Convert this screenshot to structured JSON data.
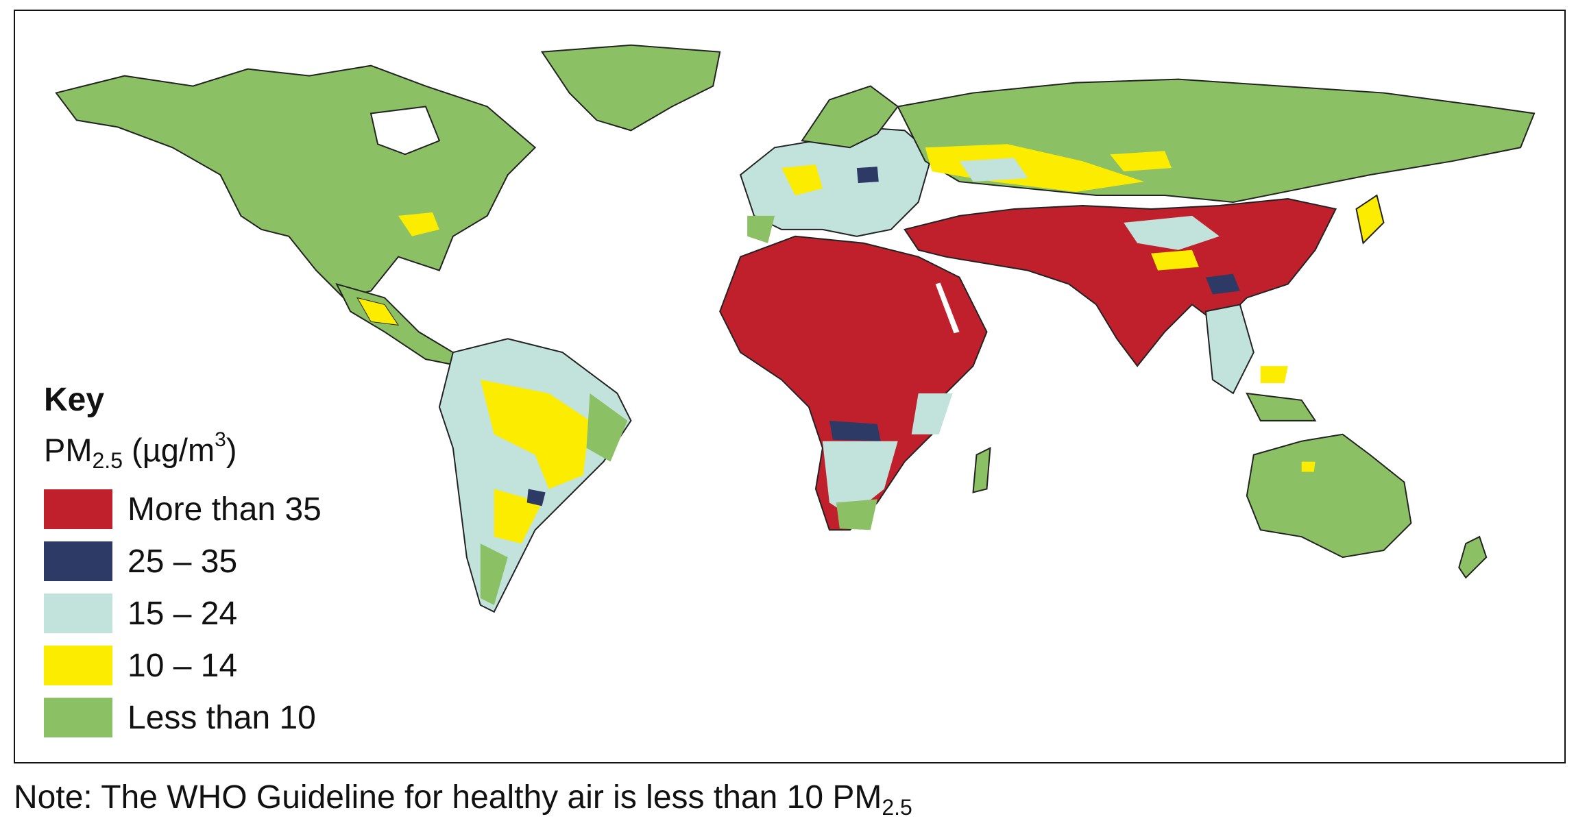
{
  "key": {
    "title": "Key",
    "unit_prefix": "PM",
    "unit_sub": "2.5",
    "unit_mid": " (µg/m",
    "unit_sup": "3",
    "unit_suffix": ")",
    "items": [
      {
        "label": "More than 35",
        "color": "#c0202c"
      },
      {
        "label": "25 – 35",
        "color": "#2d3a66"
      },
      {
        "label": "15 – 24",
        "color": "#c2e2dc"
      },
      {
        "label": "10 – 14",
        "color": "#fbec00"
      },
      {
        "label": "Less than 10",
        "color": "#8cc064"
      }
    ]
  },
  "note": {
    "text": "Note: The WHO Guideline for healthy air is less than 10 PM",
    "sub": "2.5"
  }
}
